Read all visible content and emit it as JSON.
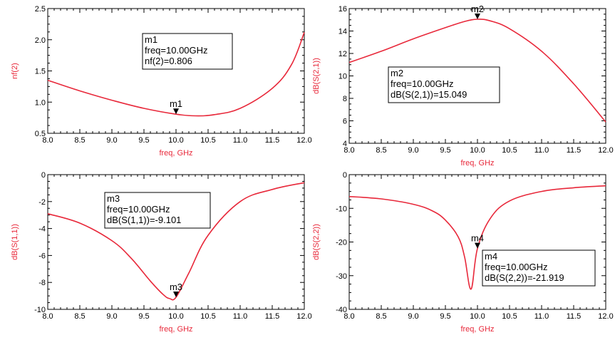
{
  "colors": {
    "trace": "#e8283a",
    "axis_label": "#e8283a",
    "frame": "#000000",
    "marker": "#000000"
  },
  "chart_data": [
    {
      "type": "line",
      "xlabel": "freq, GHz",
      "ylabel": "nf(2)",
      "xlim": [
        8.0,
        12.0
      ],
      "ylim": [
        0.5,
        2.5
      ],
      "x_ticks": [
        "8.0",
        "8.5",
        "9.0",
        "9.5",
        "10.0",
        "10.5",
        "11.0",
        "11.5",
        "12.0"
      ],
      "y_ticks": [
        "0.5",
        "1.0",
        "1.5",
        "2.0",
        "2.5"
      ],
      "grid": false,
      "series": [
        {
          "x": [
            8.0,
            8.5,
            9.0,
            9.5,
            10.0,
            10.3,
            10.6,
            11.0,
            11.5,
            11.8,
            12.0
          ],
          "y": [
            1.35,
            1.18,
            1.03,
            0.9,
            0.806,
            0.78,
            0.8,
            0.9,
            1.22,
            1.6,
            2.12
          ]
        }
      ],
      "marker": {
        "name": "m1",
        "x": 10.0,
        "y": 0.806,
        "lines": [
          "m1",
          "freq=10.00GHz",
          "nf(2)=0.806"
        ]
      }
    },
    {
      "type": "line",
      "xlabel": "freq, GHz",
      "ylabel": "dB(S(2,1))",
      "xlim": [
        8.0,
        12.0
      ],
      "ylim": [
        4,
        16
      ],
      "x_ticks": [
        "8.0",
        "8.5",
        "9.0",
        "9.5",
        "10.0",
        "10.5",
        "11.0",
        "11.5",
        "12.0"
      ],
      "y_ticks": [
        "4",
        "6",
        "8",
        "10",
        "12",
        "14",
        "16"
      ],
      "grid": false,
      "series": [
        {
          "x": [
            8.0,
            8.5,
            9.0,
            9.5,
            9.8,
            10.0,
            10.2,
            10.5,
            11.0,
            11.5,
            12.0
          ],
          "y": [
            11.2,
            12.2,
            13.3,
            14.3,
            14.85,
            15.049,
            14.9,
            14.2,
            12.2,
            9.3,
            5.9
          ]
        }
      ],
      "marker": {
        "name": "m2",
        "x": 10.0,
        "y": 15.049,
        "lines": [
          "m2",
          "freq=10.00GHz",
          "dB(S(2,1))=15.049"
        ]
      }
    },
    {
      "type": "line",
      "xlabel": "freq, GHz",
      "ylabel": "dB(S(1,1))",
      "xlim": [
        8.0,
        12.0
      ],
      "ylim": [
        -10,
        0
      ],
      "x_ticks": [
        "8.0",
        "8.5",
        "9.0",
        "9.5",
        "10.0",
        "10.5",
        "11.0",
        "11.5",
        "12.0"
      ],
      "y_ticks": [
        "-10",
        "-8",
        "-6",
        "-4",
        "-2",
        "0"
      ],
      "grid": false,
      "series": [
        {
          "x": [
            8.0,
            8.5,
            9.0,
            9.3,
            9.6,
            9.8,
            9.9,
            10.0,
            10.2,
            10.5,
            11.0,
            11.5,
            12.0
          ],
          "y": [
            -2.9,
            -3.6,
            -4.9,
            -6.2,
            -7.9,
            -8.9,
            -9.2,
            -9.101,
            -7.3,
            -4.5,
            -2.0,
            -1.1,
            -0.6
          ]
        }
      ],
      "marker": {
        "name": "m3",
        "x": 10.0,
        "y": -9.101,
        "lines": [
          "m3",
          "freq=10.00GHz",
          "dB(S(1,1))=-9.101"
        ]
      }
    },
    {
      "type": "line",
      "xlabel": "freq, GHz",
      "ylabel": "dB(S(2,2))",
      "xlim": [
        8.0,
        12.0
      ],
      "ylim": [
        -40,
        0
      ],
      "x_ticks": [
        "8.0",
        "8.5",
        "9.0",
        "9.5",
        "10.0",
        "10.5",
        "11.0",
        "11.5",
        "12.0"
      ],
      "y_ticks": [
        "-40",
        "-30",
        "-20",
        "-10",
        "0"
      ],
      "grid": false,
      "series": [
        {
          "x": [
            8.0,
            8.5,
            9.0,
            9.3,
            9.5,
            9.7,
            9.8,
            9.9,
            10.0,
            10.2,
            10.5,
            11.0,
            11.5,
            12.0
          ],
          "y": [
            -6.5,
            -7.2,
            -8.8,
            -10.8,
            -13.5,
            -18.5,
            -24.5,
            -34.0,
            -21.919,
            -13.0,
            -7.8,
            -5.0,
            -3.9,
            -3.3
          ]
        }
      ],
      "marker": {
        "name": "m4",
        "x": 10.0,
        "y": -21.919,
        "lines": [
          "m4",
          "freq=10.00GHz",
          "dB(S(2,2))=-21.919"
        ]
      }
    }
  ]
}
